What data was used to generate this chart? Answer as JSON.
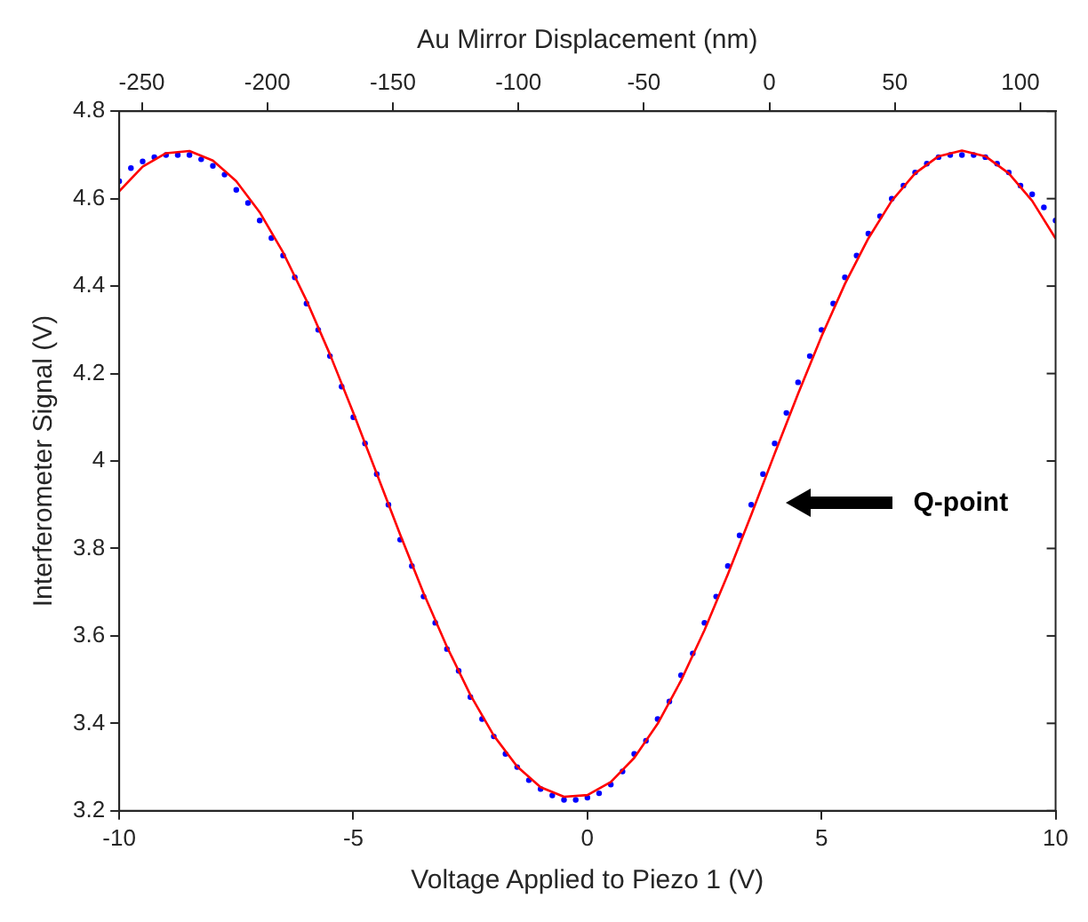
{
  "chart_data": {
    "type": "scatter",
    "xlabel": "Voltage Applied to Piezo 1 (V)",
    "ylabel": "Interferometer Signal (V)",
    "x2label": "Au Mirror Displacement (nm)",
    "xlim": [
      -10,
      10
    ],
    "xticks": [
      -10,
      -5,
      0,
      5,
      10
    ],
    "ylim": [
      3.2,
      4.8
    ],
    "yticks": [
      3.2,
      3.4,
      3.6,
      3.8,
      4,
      4.2,
      4.4,
      4.6,
      4.8
    ],
    "x2lim": [
      -259,
      114
    ],
    "x2ticks": [
      -250,
      -200,
      -150,
      -100,
      -50,
      0,
      50,
      100
    ],
    "grid": false,
    "legend": false,
    "annotations": [
      "Q-point"
    ],
    "series": [
      {
        "color": "#0000ff",
        "marker": "circle",
        "x": [
          -10,
          -9.75,
          -9.5,
          -9.25,
          -9,
          -8.75,
          -8.5,
          -8.25,
          -8,
          -7.75,
          -7.5,
          -7.25,
          -7,
          -6.75,
          -6.5,
          -6.25,
          -6,
          -5.75,
          -5.5,
          -5.25,
          -5,
          -4.75,
          -4.5,
          -4.25,
          -4,
          -3.75,
          -3.5,
          -3.25,
          -3,
          -2.75,
          -2.5,
          -2.25,
          -2,
          -1.75,
          -1.5,
          -1.25,
          -1,
          -0.75,
          -0.5,
          -0.25,
          0,
          0.25,
          0.5,
          0.75,
          1,
          1.25,
          1.5,
          1.75,
          2,
          2.25,
          2.5,
          2.75,
          3,
          3.25,
          3.5,
          3.75,
          4,
          4.25,
          4.5,
          4.75,
          5,
          5.25,
          5.5,
          5.75,
          6,
          6.25,
          6.5,
          6.75,
          7,
          7.25,
          7.5,
          7.75,
          8,
          8.25,
          8.5,
          8.75,
          9,
          9.25,
          9.5,
          9.75,
          10
        ],
        "values": [
          4.64,
          4.67,
          4.685,
          4.695,
          4.7,
          4.7,
          4.7,
          4.69,
          4.675,
          4.655,
          4.62,
          4.59,
          4.55,
          4.51,
          4.47,
          4.42,
          4.36,
          4.3,
          4.24,
          4.17,
          4.1,
          4.04,
          3.97,
          3.9,
          3.82,
          3.76,
          3.69,
          3.63,
          3.57,
          3.52,
          3.46,
          3.41,
          3.37,
          3.33,
          3.3,
          3.27,
          3.25,
          3.235,
          3.225,
          3.225,
          3.23,
          3.24,
          3.26,
          3.29,
          3.33,
          3.36,
          3.41,
          3.45,
          3.51,
          3.56,
          3.63,
          3.69,
          3.76,
          3.83,
          3.9,
          3.97,
          4.04,
          4.11,
          4.18,
          4.24,
          4.3,
          4.36,
          4.42,
          4.47,
          4.52,
          4.56,
          4.6,
          4.63,
          4.66,
          4.68,
          4.695,
          4.7,
          4.7,
          4.7,
          4.695,
          4.68,
          4.66,
          4.63,
          4.61,
          4.58,
          4.55
        ]
      },
      {
        "type": "line",
        "color": "#ff0000",
        "marker": "none",
        "line_style": "solid",
        "x": [
          -10,
          -9.5,
          -9,
          -8.5,
          -8,
          -7.5,
          -7,
          -6.5,
          -6,
          -5.5,
          -5,
          -4.5,
          -4,
          -3.5,
          -3,
          -2.5,
          -2,
          -1.5,
          -1,
          -0.5,
          0,
          0.5,
          1,
          1.5,
          2,
          2.5,
          3,
          3.5,
          4,
          4.5,
          5,
          5.5,
          6,
          6.5,
          7,
          7.5,
          8,
          8.5,
          9,
          9.5,
          10
        ],
        "values": [
          4.617,
          4.673,
          4.704,
          4.709,
          4.687,
          4.64,
          4.569,
          4.477,
          4.367,
          4.244,
          4.11,
          3.971,
          3.832,
          3.698,
          3.575,
          3.465,
          3.372,
          3.301,
          3.254,
          3.232,
          3.236,
          3.266,
          3.321,
          3.399,
          3.498,
          3.613,
          3.741,
          3.877,
          4.017,
          4.154,
          4.285,
          4.405,
          4.509,
          4.595,
          4.658,
          4.697,
          4.71,
          4.697,
          4.658,
          4.595,
          4.509
        ]
      }
    ]
  }
}
